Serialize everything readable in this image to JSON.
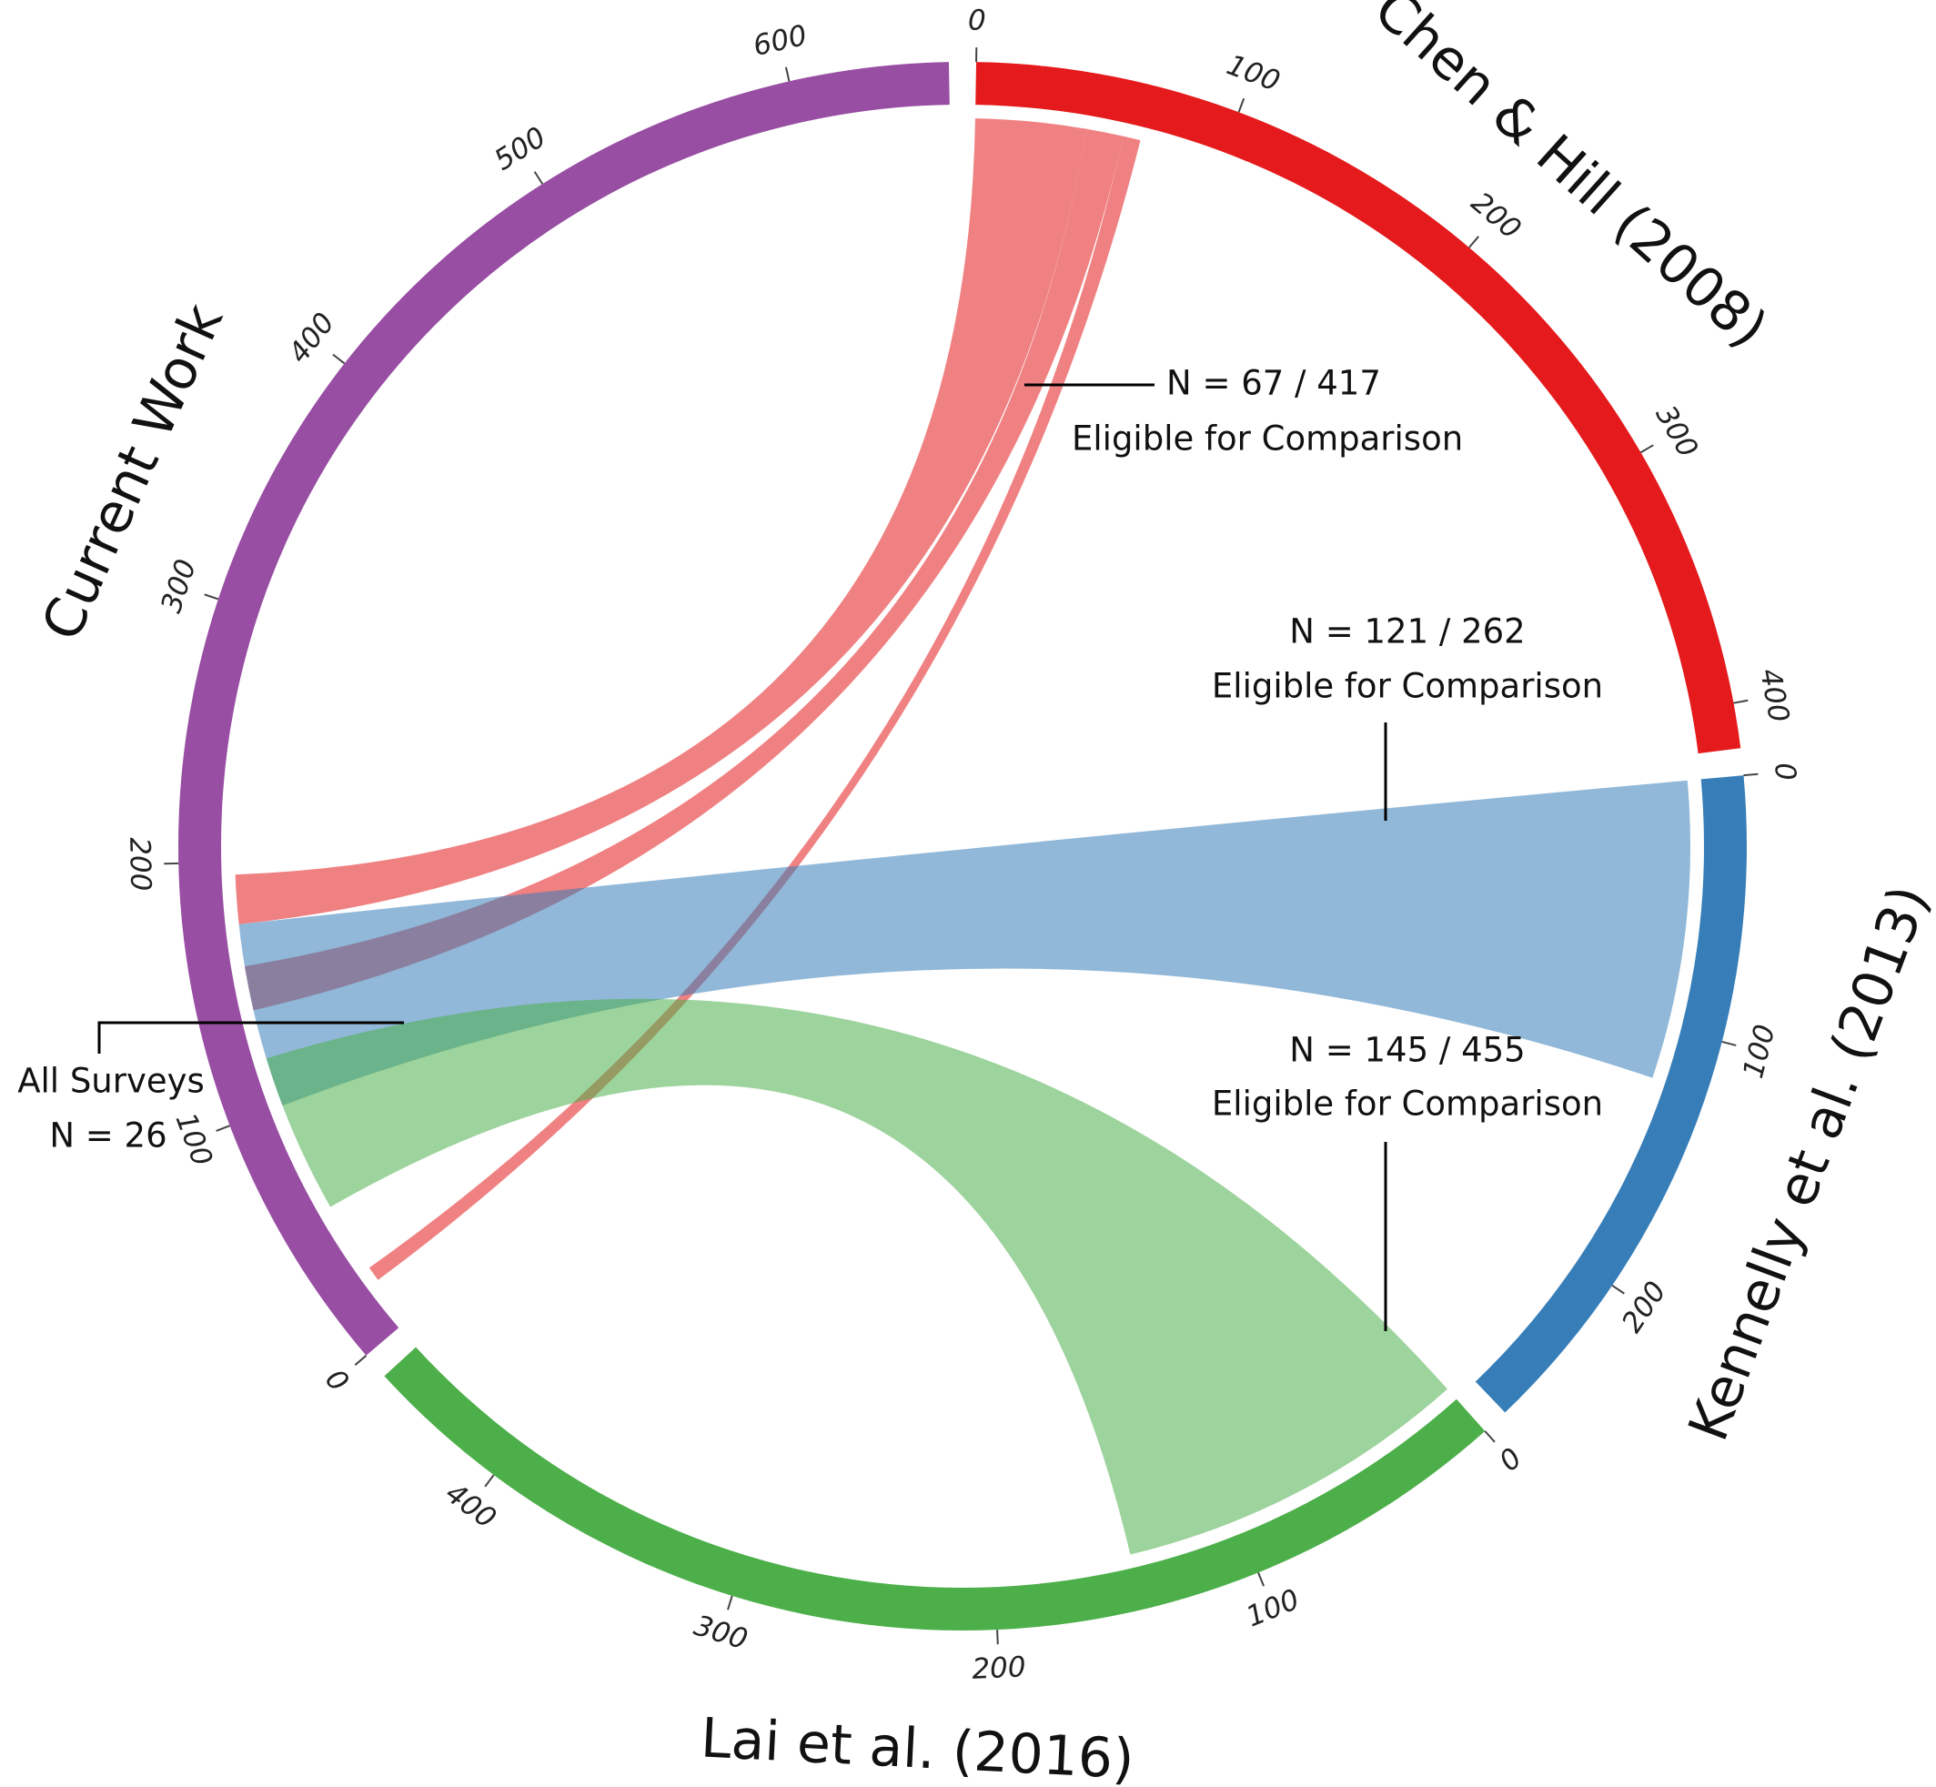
{
  "chart_data": {
    "type": "chord",
    "sectors": [
      {
        "name": "Chen & Hill (2008)",
        "value": 417,
        "color": "#e41a1c",
        "ticks": [
          0,
          100,
          200,
          300,
          400
        ]
      },
      {
        "name": "Kennelly et al. (2013)",
        "value": 262,
        "color": "#377eb8",
        "ticks": [
          0,
          100,
          200
        ]
      },
      {
        "name": "Lai et al. (2016)",
        "value": 455,
        "color": "#4daf4a",
        "ticks": [
          0,
          100,
          200,
          300,
          400
        ]
      },
      {
        "name": "Current Work",
        "value": 660,
        "color": "#984ea3",
        "ticks": [
          0,
          100,
          200,
          300,
          400,
          500,
          600
        ]
      }
    ],
    "links": [
      {
        "source": "Chen & Hill (2008)",
        "target": "Current Work",
        "source_range": [
          0,
          45
        ],
        "target_range": [
          175,
          195
        ],
        "color": "#e41a1c"
      },
      {
        "source": "Chen & Hill (2008)",
        "target": "Current Work",
        "source_range": [
          45,
          60
        ],
        "target_range": [
          140,
          158
        ],
        "color": "#e41a1c"
      },
      {
        "source": "Chen & Hill (2008)",
        "target": "Current Work",
        "source_range": [
          60,
          67
        ],
        "target_range": [
          20,
          26
        ],
        "color": "#e41a1c"
      },
      {
        "source": "Kennelly et al. (2013)",
        "target": "Current Work",
        "source_range": [
          0,
          121
        ],
        "target_range": [
          100,
          175
        ],
        "color": "#377eb8"
      },
      {
        "source": "Lai et al. (2016)",
        "target": "Current Work",
        "source_range": [
          0,
          145
        ],
        "target_range": [
          55,
          120
        ],
        "color": "#4daf4a"
      }
    ],
    "annotations": [
      {
        "lines": [
          "N = 67 / 417",
          "Eligible for Comparison"
        ]
      },
      {
        "lines": [
          "N = 121 / 262",
          "Eligible for Comparison"
        ]
      },
      {
        "lines": [
          "N = 145 / 455",
          "Eligible for Comparison"
        ]
      },
      {
        "lines": [
          "All Surveys",
          "N = 26"
        ]
      }
    ]
  }
}
